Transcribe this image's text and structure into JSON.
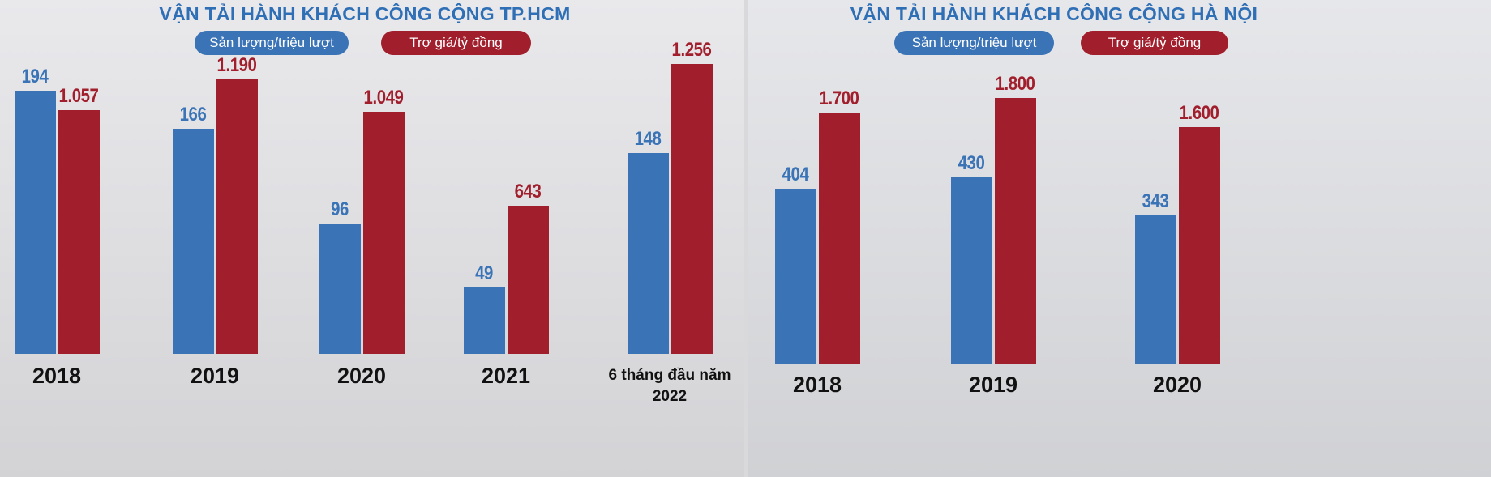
{
  "chart_data": [
    {
      "type": "bar",
      "title": "VẬN TẢI HÀNH KHÁCH CÔNG CỘNG TP.HCM",
      "categories": [
        "2018",
        "2019",
        "2020",
        "2021",
        "6 tháng đầu năm 2022"
      ],
      "series": [
        {
          "name": "Sản lượng/triệu lượt",
          "color": "#3b74b6",
          "values": [
            194,
            166,
            96,
            49,
            148
          ]
        },
        {
          "name": "Trợ giá/tỷ đồng",
          "color": "#a11f2c",
          "values": [
            1057,
            1190,
            1049,
            643,
            1256
          ],
          "value_labels": [
            "1.057",
            "1.190",
            "1.049",
            "643",
            "1.256"
          ]
        }
      ]
    },
    {
      "type": "bar",
      "title": "VẬN TẢI HÀNH KHÁCH CÔNG CỘNG HÀ NỘI",
      "categories": [
        "2018",
        "2019",
        "2020"
      ],
      "series": [
        {
          "name": "Sản lượng/triệu lượt",
          "color": "#3b74b6",
          "values": [
            404,
            430,
            343
          ]
        },
        {
          "name": "Trợ giá/tỷ đồng",
          "color": "#a11f2c",
          "values": [
            1700,
            1800,
            1600
          ],
          "value_labels": [
            "1.700",
            "1.800",
            "1.600"
          ]
        }
      ]
    }
  ]
}
